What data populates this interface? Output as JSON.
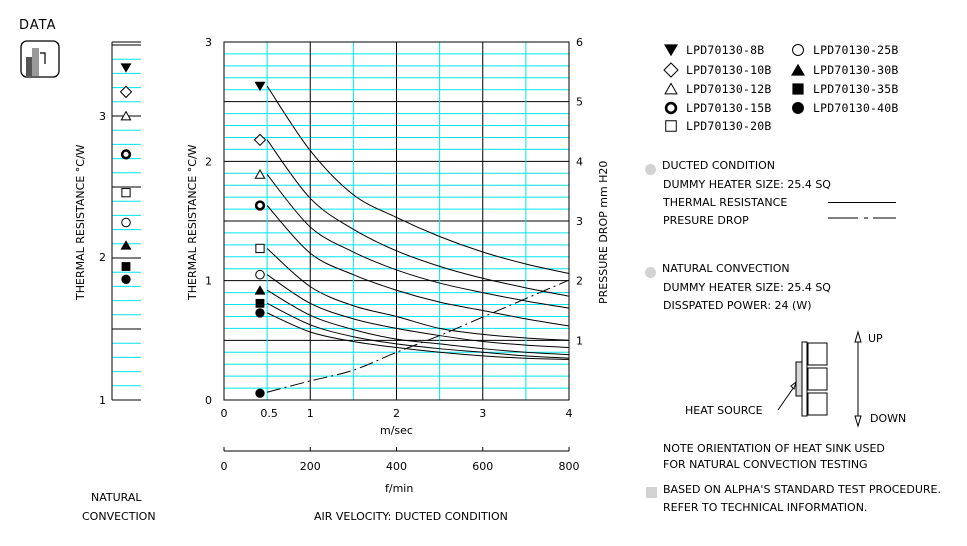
{
  "header": {
    "title": "DATA",
    "icon": "bar-chart-icon"
  },
  "natural_strip": {
    "ylabel": "THERMAL RESISTANCE  °C/W",
    "ticks": [
      "3",
      "2",
      "1"
    ],
    "caption_line1": "NATURAL",
    "caption_line2": "CONVECTION"
  },
  "main_chart": {
    "ylabel_left": "THERMAL RESISTANCE  °C/W",
    "ylabel_right": "PRESSURE DROP   mm H20",
    "left_ticks": [
      "3",
      "2",
      "1",
      "0"
    ],
    "right_ticks": [
      "6",
      "5",
      "4",
      "3",
      "2",
      "1"
    ],
    "x_ticks_ms": [
      "0",
      "0.5",
      "1",
      "2",
      "3",
      "4"
    ],
    "x_unit_ms": "m/sec",
    "x_ticks_fmin": [
      "0",
      "200",
      "400",
      "600",
      "800"
    ],
    "x_unit_fmin": "f/min",
    "caption": "AIR VELOCITY:  DUCTED CONDITION"
  },
  "legend": {
    "items": [
      {
        "symbol": "triangle-down-filled",
        "label": "LPD70130-8B"
      },
      {
        "symbol": "diamond-open",
        "label": "LPD70130-10B"
      },
      {
        "symbol": "triangle-up-open",
        "label": "LPD70130-12B"
      },
      {
        "symbol": "circle-bold-ring",
        "label": "LPD70130-15B"
      },
      {
        "symbol": "square-open",
        "label": "LPD70130-20B"
      },
      {
        "symbol": "circle-open",
        "label": "LPD70130-25B"
      },
      {
        "symbol": "triangle-up-filled",
        "label": "LPD70130-30B"
      },
      {
        "symbol": "square-filled",
        "label": "LPD70130-35B"
      },
      {
        "symbol": "circle-filled",
        "label": "LPD70130-40B"
      }
    ]
  },
  "ducted": {
    "title": "DUCTED CONDITION",
    "heater": "DUMMY HEATER SIZE:  25.4 SQ",
    "thermal": "THERMAL RESISTANCE",
    "pressure": "PRESURE DROP"
  },
  "natural": {
    "title": "NATURAL CONVECTION",
    "heater": "DUMMY HEATER SIZE:  25.4 SQ",
    "power": "DISSPATED POWER:   24 (W)"
  },
  "diagram": {
    "up": "UP",
    "down": "DOWN",
    "heat_source": "HEAT SOURCE"
  },
  "notes": {
    "orientation_line1": "NOTE ORIENTATION OF HEAT SINK USED",
    "orientation_line2": "FOR NATURAL CONVECTION TESTING",
    "standard_line1": "BASED ON ALPHA'S STANDARD TEST PROCEDURE.",
    "standard_line2": "REFER TO TECHNICAL INFORMATION."
  },
  "colors": {
    "grid_minor": "#00e5ee",
    "grid_major": "#000000",
    "marker_gray": "#d2d2d2"
  },
  "chart_data": [
    {
      "type": "line",
      "title": "Thermal resistance & pressure drop vs air velocity (ducted condition)",
      "xlabel": "m/sec (f/min)",
      "ylabel": "THERMAL RESISTANCE °C/W",
      "ylabel_right": "PRESSURE DROP mm H20",
      "xlim": [
        0,
        4
      ],
      "ylim": [
        0,
        3
      ],
      "ylim_right": [
        0,
        6
      ],
      "grid": true,
      "x": [
        0.5,
        1,
        1.5,
        2,
        2.5,
        3,
        3.5,
        4
      ],
      "series": [
        {
          "name": "LPD70130-8B",
          "axis": "left",
          "values": [
            2.63,
            2.09,
            1.72,
            1.53,
            1.37,
            1.24,
            1.14,
            1.06
          ]
        },
        {
          "name": "LPD70130-10B",
          "axis": "left",
          "values": [
            2.18,
            1.69,
            1.43,
            1.25,
            1.12,
            1.02,
            0.94,
            0.87
          ]
        },
        {
          "name": "LPD70130-12B",
          "axis": "left",
          "values": [
            1.89,
            1.45,
            1.24,
            1.09,
            0.98,
            0.9,
            0.83,
            0.77
          ]
        },
        {
          "name": "LPD70130-15B",
          "axis": "left",
          "values": [
            1.63,
            1.23,
            1.05,
            0.92,
            0.82,
            0.75,
            0.68,
            0.62
          ]
        },
        {
          "name": "LPD70130-20B",
          "axis": "left",
          "values": [
            1.27,
            0.95,
            0.79,
            0.7,
            0.6,
            0.55,
            0.52,
            0.5
          ]
        },
        {
          "name": "LPD70130-25B",
          "axis": "left",
          "values": [
            1.05,
            0.81,
            0.68,
            0.6,
            0.54,
            0.49,
            0.46,
            0.44
          ]
        },
        {
          "name": "LPD70130-30B",
          "axis": "left",
          "values": [
            0.92,
            0.71,
            0.59,
            0.51,
            0.47,
            0.43,
            0.4,
            0.38
          ]
        },
        {
          "name": "LPD70130-35B",
          "axis": "left",
          "values": [
            0.81,
            0.63,
            0.53,
            0.47,
            0.43,
            0.4,
            0.37,
            0.35
          ]
        },
        {
          "name": "LPD70130-40B",
          "axis": "left",
          "values": [
            0.73,
            0.57,
            0.49,
            0.44,
            0.4,
            0.37,
            0.35,
            0.34
          ]
        },
        {
          "name": "PRESURE DROP",
          "axis": "right",
          "style": "dash-dot",
          "values": [
            0.13,
            0.32,
            0.5,
            0.8,
            1.08,
            1.39,
            1.7,
            2.01
          ]
        }
      ]
    },
    {
      "type": "scatter",
      "title": "NATURAL CONVECTION",
      "ylabel": "THERMAL RESISTANCE °C/W",
      "ylim": [
        1,
        3.5
      ],
      "categories": [
        "LPD70130-8B",
        "LPD70130-10B",
        "LPD70130-12B",
        "LPD70130-15B",
        "LPD70130-20B",
        "LPD70130-25B",
        "LPD70130-30B",
        "LPD70130-35B",
        "LPD70130-40B"
      ],
      "values": [
        3.34,
        3.17,
        3.0,
        2.73,
        2.46,
        2.25,
        2.09,
        1.94,
        1.85
      ]
    }
  ]
}
